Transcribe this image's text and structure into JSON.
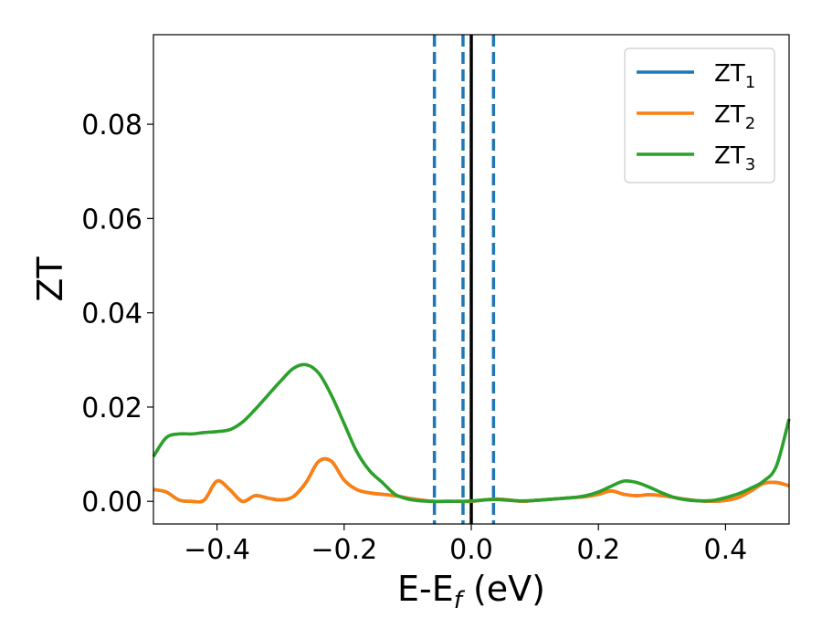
{
  "chart_data": {
    "type": "line",
    "xlabel": {
      "main": "E-E",
      "sub": "f",
      "suffix": " (eV)"
    },
    "ylabel": "ZT",
    "xlim": [
      -0.5,
      0.5
    ],
    "ylim": [
      -0.0048,
      0.099
    ],
    "xticks": [
      {
        "value": -0.4,
        "label": "−0.4"
      },
      {
        "value": -0.2,
        "label": "−0.2"
      },
      {
        "value": 0.0,
        "label": "0.0"
      },
      {
        "value": 0.2,
        "label": "0.2"
      },
      {
        "value": 0.4,
        "label": "0.4"
      }
    ],
    "yticks": [
      {
        "value": 0.0,
        "label": "0.00"
      },
      {
        "value": 0.02,
        "label": "0.02"
      },
      {
        "value": 0.04,
        "label": "0.04"
      },
      {
        "value": 0.06,
        "label": "0.06"
      },
      {
        "value": 0.08,
        "label": "0.08"
      }
    ],
    "grid": false,
    "legend_position": "top-right",
    "vertical_lines": [
      {
        "x": -0.058,
        "style": "dashed",
        "color": "#1f77b4"
      },
      {
        "x": -0.013,
        "style": "dashed",
        "color": "#1f77b4"
      },
      {
        "x": 0.0,
        "style": "solid",
        "color": "#000000"
      },
      {
        "x": 0.035,
        "style": "dashed",
        "color": "#1f77b4"
      }
    ],
    "series": [
      {
        "name": "ZT",
        "sub": "1",
        "color": "#1f77b4",
        "x": [
          -0.5,
          -0.48,
          -0.46,
          -0.44,
          -0.42,
          -0.4,
          -0.38,
          -0.36,
          -0.34,
          -0.32,
          -0.3,
          -0.28,
          -0.26,
          -0.24,
          -0.22,
          -0.2,
          -0.18,
          -0.16,
          -0.14,
          -0.12,
          -0.1,
          -0.08,
          -0.06,
          -0.04,
          -0.02,
          0.0,
          0.02,
          0.04,
          0.06,
          0.08,
          0.1,
          0.12,
          0.14,
          0.16,
          0.18,
          0.2,
          0.22,
          0.24,
          0.26,
          0.28,
          0.3,
          0.32,
          0.34,
          0.36,
          0.38,
          0.4,
          0.42,
          0.44,
          0.46,
          0.48,
          0.5
        ],
        "y": [
          0.0025,
          0.002,
          0.0003,
          0.0,
          0.0003,
          0.0043,
          0.0025,
          0.0,
          0.0012,
          0.0007,
          0.0003,
          0.001,
          0.004,
          0.0085,
          0.0085,
          0.0045,
          0.0025,
          0.0018,
          0.0015,
          0.0012,
          0.0007,
          0.0003,
          0.0,
          0.0,
          0.0,
          0.0,
          0.0003,
          0.0005,
          0.0003,
          0.0,
          0.0002,
          0.0004,
          0.0006,
          0.0008,
          0.001,
          0.0015,
          0.0022,
          0.0015,
          0.0012,
          0.0014,
          0.0012,
          0.0008,
          0.0004,
          0.0001,
          0.0,
          0.0002,
          0.0008,
          0.0022,
          0.0038,
          0.004,
          0.0033
        ]
      },
      {
        "name": "ZT",
        "sub": "2",
        "color": "#ff7f0e",
        "x": [
          -0.5,
          -0.48,
          -0.46,
          -0.44,
          -0.42,
          -0.4,
          -0.38,
          -0.36,
          -0.34,
          -0.32,
          -0.3,
          -0.28,
          -0.26,
          -0.24,
          -0.22,
          -0.2,
          -0.18,
          -0.16,
          -0.14,
          -0.12,
          -0.1,
          -0.08,
          -0.06,
          -0.04,
          -0.02,
          0.0,
          0.02,
          0.04,
          0.06,
          0.08,
          0.1,
          0.12,
          0.14,
          0.16,
          0.18,
          0.2,
          0.22,
          0.24,
          0.26,
          0.28,
          0.3,
          0.32,
          0.34,
          0.36,
          0.38,
          0.4,
          0.42,
          0.44,
          0.46,
          0.48,
          0.5
        ],
        "y": [
          0.0025,
          0.002,
          0.0003,
          0.0,
          0.0003,
          0.0043,
          0.0025,
          0.0,
          0.0012,
          0.0007,
          0.0003,
          0.001,
          0.004,
          0.0085,
          0.0085,
          0.0045,
          0.0025,
          0.0018,
          0.0015,
          0.0012,
          0.0007,
          0.0003,
          0.0,
          0.0,
          0.0,
          0.0,
          0.0003,
          0.0005,
          0.0003,
          0.0,
          0.0002,
          0.0004,
          0.0006,
          0.0008,
          0.001,
          0.0015,
          0.0022,
          0.0015,
          0.0012,
          0.0014,
          0.0012,
          0.0008,
          0.0004,
          0.0001,
          0.0,
          0.0002,
          0.0008,
          0.0022,
          0.0038,
          0.004,
          0.0033
        ]
      },
      {
        "name": "ZT",
        "sub": "3",
        "color": "#2ca02c",
        "x": [
          -0.5,
          -0.48,
          -0.46,
          -0.44,
          -0.42,
          -0.4,
          -0.38,
          -0.36,
          -0.34,
          -0.32,
          -0.3,
          -0.28,
          -0.26,
          -0.24,
          -0.22,
          -0.2,
          -0.18,
          -0.16,
          -0.14,
          -0.12,
          -0.1,
          -0.08,
          -0.06,
          -0.04,
          -0.02,
          0.0,
          0.02,
          0.04,
          0.06,
          0.08,
          0.1,
          0.12,
          0.14,
          0.16,
          0.18,
          0.2,
          0.22,
          0.24,
          0.26,
          0.28,
          0.3,
          0.32,
          0.34,
          0.36,
          0.38,
          0.4,
          0.42,
          0.44,
          0.46,
          0.48,
          0.5
        ],
        "y": [
          0.0095,
          0.0135,
          0.0143,
          0.0143,
          0.0146,
          0.0148,
          0.0152,
          0.0168,
          0.0195,
          0.0225,
          0.0255,
          0.0282,
          0.029,
          0.0272,
          0.0225,
          0.0165,
          0.0105,
          0.0065,
          0.004,
          0.0015,
          0.0005,
          0.0001,
          0.0,
          0.0,
          0.0,
          0.0001,
          0.0003,
          0.0004,
          0.0002,
          0.0001,
          0.0002,
          0.0004,
          0.0006,
          0.0008,
          0.0012,
          0.002,
          0.0032,
          0.0043,
          0.004,
          0.003,
          0.0018,
          0.0008,
          0.0003,
          0.0001,
          0.0002,
          0.0008,
          0.0016,
          0.0028,
          0.0043,
          0.0075,
          0.0175
        ]
      }
    ]
  }
}
